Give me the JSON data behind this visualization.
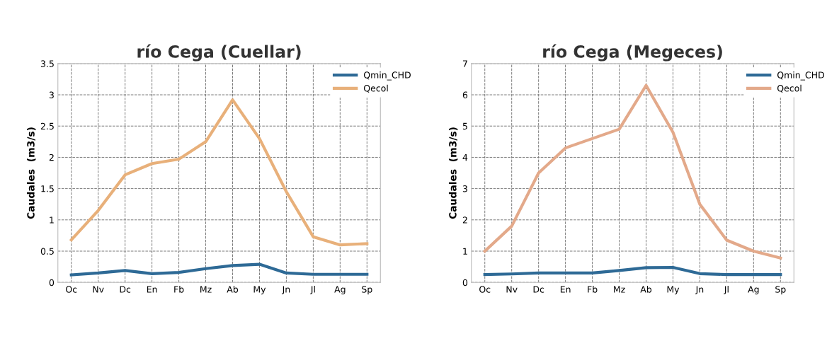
{
  "chart_data": [
    {
      "type": "line",
      "title": "río Cega (Cuellar)",
      "ylabel": "Caudales  (m3/s)",
      "categories": [
        "Oc",
        "Nv",
        "Dc",
        "En",
        "Fb",
        "Mz",
        "Ab",
        "My",
        "Jn",
        "Jl",
        "Ag",
        "Sp"
      ],
      "ylim": [
        0,
        3.5
      ],
      "yticks": [
        0,
        0.5,
        1,
        1.5,
        2,
        2.5,
        3,
        3.5
      ],
      "grid": true,
      "legend": "top right",
      "marker": "none",
      "series": [
        {
          "name": "Qmin_CHD",
          "color": "#2e6a96",
          "values": [
            0.12,
            0.15,
            0.19,
            0.14,
            0.16,
            0.22,
            0.27,
            0.29,
            0.15,
            0.13,
            0.13,
            0.13
          ]
        },
        {
          "name": "Qecol",
          "color": "#e8b07a",
          "values": [
            0.68,
            1.15,
            1.72,
            1.9,
            1.97,
            2.25,
            2.92,
            2.3,
            1.45,
            0.73,
            0.6,
            0.62
          ]
        }
      ]
    },
    {
      "type": "line",
      "title": "río Cega (Megeces)",
      "ylabel": "Caudales  (m3/s)",
      "categories": [
        "Oc",
        "Nv",
        "Dc",
        "En",
        "Fb",
        "Mz",
        "Ab",
        "My",
        "Jn",
        "Jl",
        "Ag",
        "Sp"
      ],
      "ylim": [
        0,
        7
      ],
      "yticks": [
        0,
        1,
        2,
        3,
        4,
        5,
        6,
        7
      ],
      "grid": true,
      "legend": "top right",
      "marker": "none",
      "series": [
        {
          "name": "Qmin_CHD",
          "color": "#2e6a96",
          "values": [
            0.25,
            0.27,
            0.3,
            0.3,
            0.3,
            0.38,
            0.47,
            0.48,
            0.28,
            0.25,
            0.25,
            0.25
          ]
        },
        {
          "name": "Qecol",
          "color": "#e3a98a",
          "values": [
            1.0,
            1.8,
            3.5,
            4.3,
            4.6,
            4.9,
            6.3,
            4.8,
            2.5,
            1.35,
            1.0,
            0.78
          ]
        }
      ]
    }
  ]
}
